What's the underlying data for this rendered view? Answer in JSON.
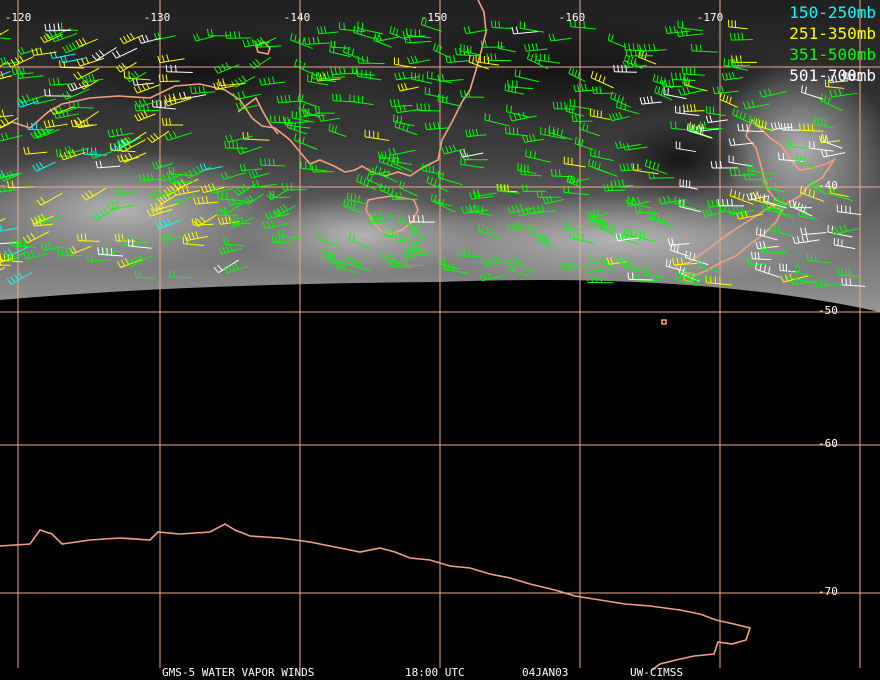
{
  "map": {
    "longitude_labels": [
      "-120",
      "-130",
      "-140",
      "-150",
      "-160",
      "-170"
    ],
    "latitude_labels": [
      "-40",
      "-50",
      "-60",
      "-70"
    ],
    "grid_color": "#f0a890",
    "coast_color": "#f4a080"
  },
  "legend": [
    {
      "label": "150-250mb",
      "color": "#00ffff"
    },
    {
      "label": "251-350mb",
      "color": "#ffff00"
    },
    {
      "label": "351-500mb",
      "color": "#00ff00"
    },
    {
      "label": "501-700mb",
      "color": "#ffffff"
    }
  ],
  "footer": {
    "product": "GMS-5 WATER VAPOR WINDS",
    "time": "18:00 UTC",
    "date": "04JAN03",
    "source": "UW-CIMSS"
  }
}
